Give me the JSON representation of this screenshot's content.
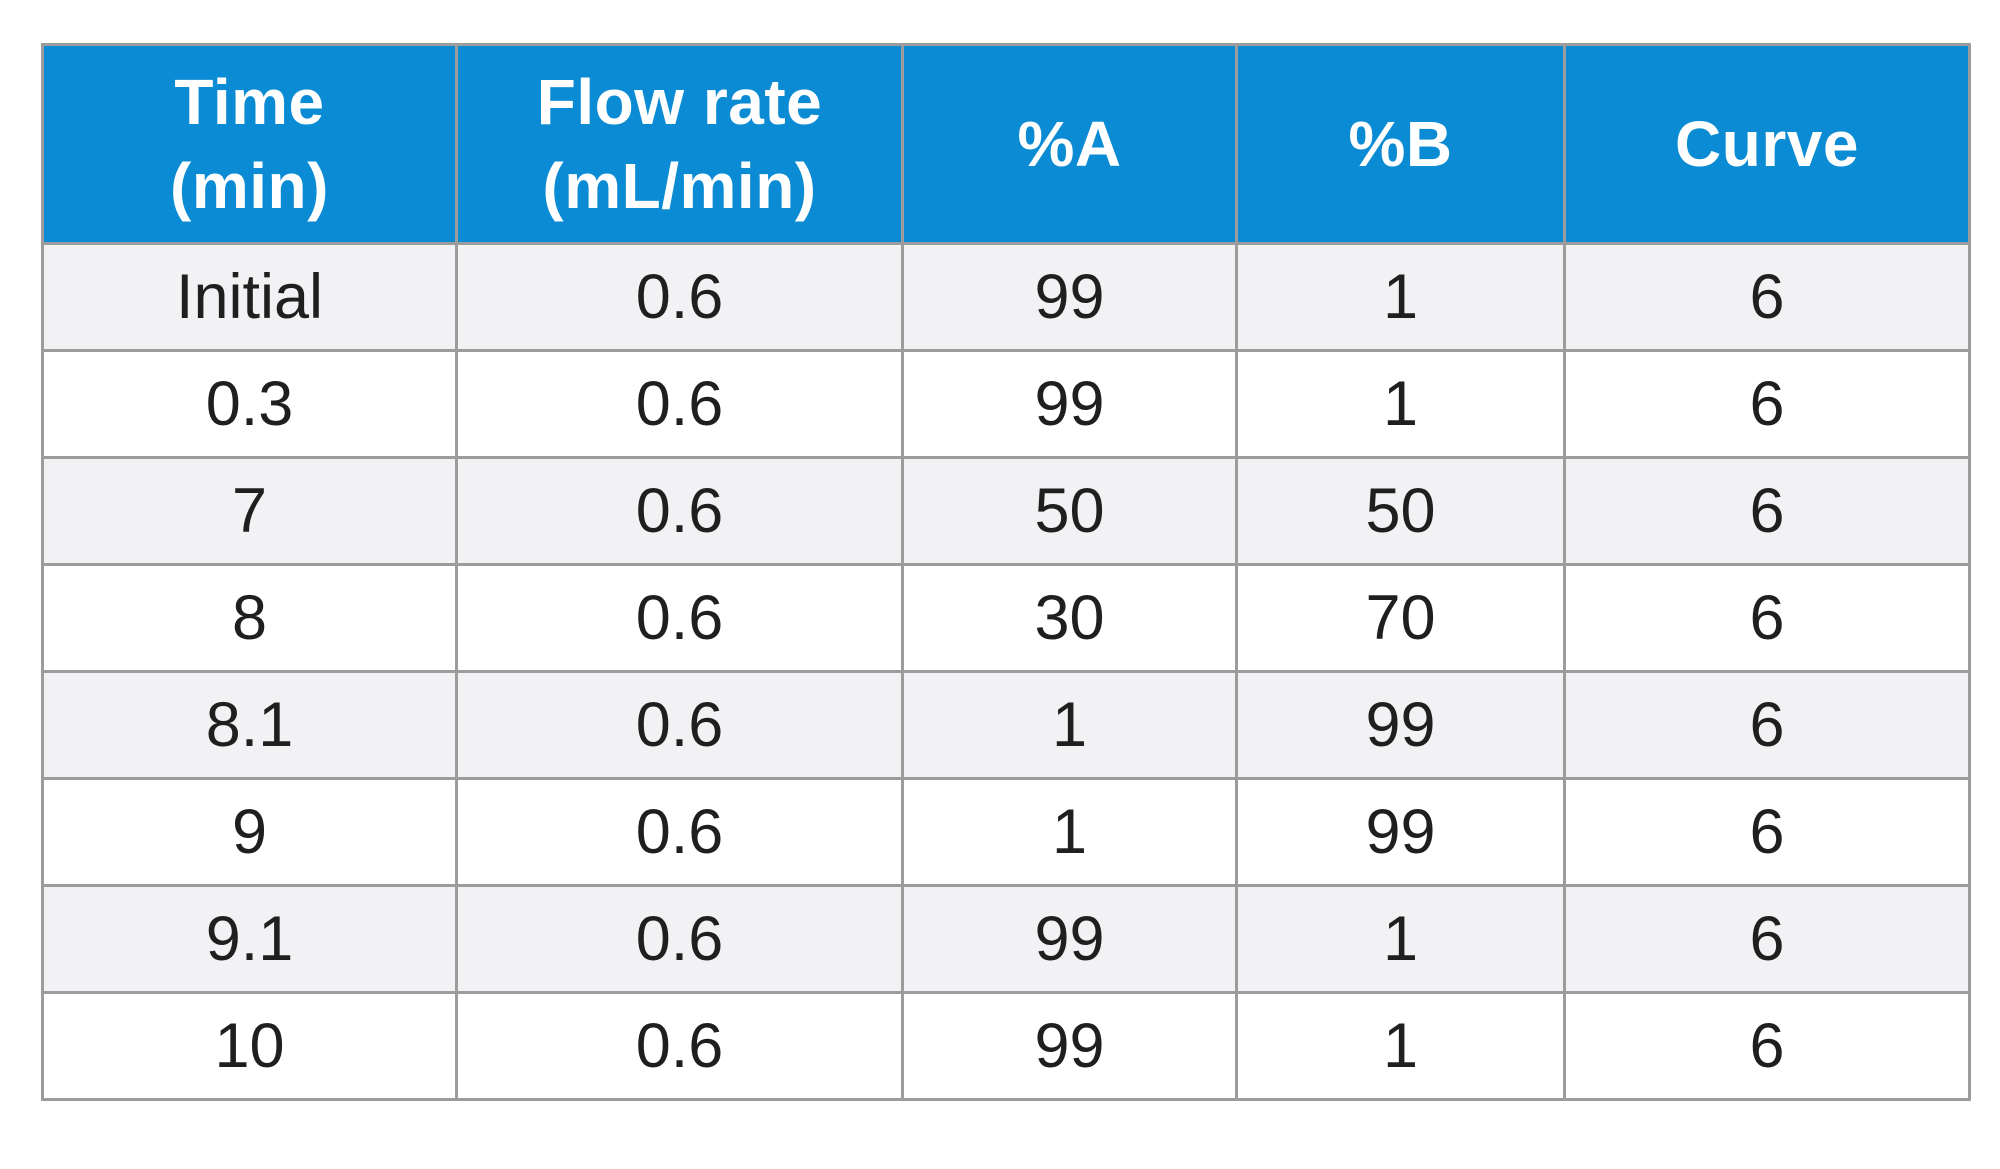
{
  "table": {
    "headers": [
      {
        "line1": "Time",
        "line2": "(min)"
      },
      {
        "line1": "Flow rate",
        "line2": "(mL/min)"
      },
      {
        "line1": "%A",
        "line2": ""
      },
      {
        "line1": "%B",
        "line2": ""
      },
      {
        "line1": "Curve",
        "line2": ""
      }
    ],
    "rows": [
      [
        "Initial",
        "0.6",
        "99",
        "1",
        "6"
      ],
      [
        "0.3",
        "0.6",
        "99",
        "1",
        "6"
      ],
      [
        "7",
        "0.6",
        "50",
        "50",
        "6"
      ],
      [
        "8",
        "0.6",
        "30",
        "70",
        "6"
      ],
      [
        "8.1",
        "0.6",
        "1",
        "99",
        "6"
      ],
      [
        "9",
        "0.6",
        "1",
        "99",
        "6"
      ],
      [
        "9.1",
        "0.6",
        "99",
        "1",
        "6"
      ],
      [
        "10",
        "0.6",
        "99",
        "1",
        "6"
      ]
    ]
  },
  "colors": {
    "header_bg": "#0a8bd3",
    "header_text": "#ffffff",
    "row_alt_bg": "#f2f2f4",
    "grid_line": "#9c9c9c"
  }
}
